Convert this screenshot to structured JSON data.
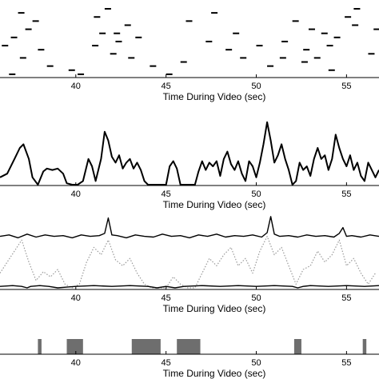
{
  "chart_data": [
    {
      "type": "raster",
      "xlabel": "Time During Video (sec)",
      "xlim": [
        35.8,
        56.8
      ],
      "xticks": [
        40,
        45,
        50,
        55
      ],
      "events": [
        {
          "t": 36.8,
          "row": 1
        },
        {
          "t": 37.6,
          "row": 3
        },
        {
          "t": 37.2,
          "row": 5
        },
        {
          "t": 36.4,
          "row": 7
        },
        {
          "t": 35.9,
          "row": 9
        },
        {
          "t": 37.9,
          "row": 10
        },
        {
          "t": 36.9,
          "row": 12
        },
        {
          "t": 38.4,
          "row": 14
        },
        {
          "t": 36.3,
          "row": 16
        },
        {
          "t": 41.6,
          "row": 0
        },
        {
          "t": 41.0,
          "row": 2
        },
        {
          "t": 42.7,
          "row": 4
        },
        {
          "t": 41.3,
          "row": 6
        },
        {
          "t": 42.1,
          "row": 6
        },
        {
          "t": 43.3,
          "row": 7
        },
        {
          "t": 42.2,
          "row": 8
        },
        {
          "t": 40.9,
          "row": 9
        },
        {
          "t": 41.9,
          "row": 11
        },
        {
          "t": 42.9,
          "row": 12
        },
        {
          "t": 44.1,
          "row": 14
        },
        {
          "t": 39.6,
          "row": 15
        },
        {
          "t": 40.1,
          "row": 16
        },
        {
          "t": 47.5,
          "row": 1
        },
        {
          "t": 48.7,
          "row": 6
        },
        {
          "t": 47.2,
          "row": 8
        },
        {
          "t": 48.3,
          "row": 10
        },
        {
          "t": 50.0,
          "row": 9
        },
        {
          "t": 49.1,
          "row": 12
        },
        {
          "t": 51.4,
          "row": 8
        },
        {
          "t": 51.3,
          "row": 12
        },
        {
          "t": 50.6,
          "row": 14
        },
        {
          "t": 52.0,
          "row": 3
        },
        {
          "t": 52.9,
          "row": 5
        },
        {
          "t": 53.6,
          "row": 6
        },
        {
          "t": 54.3,
          "row": 7
        },
        {
          "t": 53.9,
          "row": 9
        },
        {
          "t": 52.6,
          "row": 10
        },
        {
          "t": 53.2,
          "row": 12
        },
        {
          "t": 55.4,
          "row": 0
        },
        {
          "t": 54.9,
          "row": 2
        },
        {
          "t": 55.3,
          "row": 4
        },
        {
          "t": 54.0,
          "row": 15
        },
        {
          "t": 52.5,
          "row": 13
        },
        {
          "t": 45.8,
          "row": 13
        },
        {
          "t": 46.1,
          "row": 3
        },
        {
          "t": 56.2,
          "row": 11
        },
        {
          "t": 56.5,
          "row": 5
        },
        {
          "t": 45.0,
          "row": 16
        }
      ]
    },
    {
      "type": "line",
      "xlabel": "Time During Video (sec)",
      "xlim": [
        35.8,
        56.8
      ],
      "xticks": [
        40,
        45,
        50,
        55
      ],
      "ylim": [
        0,
        1
      ],
      "series": [
        {
          "style": "solid",
          "x": [
            35.8,
            36.2,
            36.6,
            36.9,
            37.1,
            37.4,
            37.6,
            37.9,
            38.2,
            38.4,
            38.7,
            39.0,
            39.3,
            39.5,
            39.8,
            40.1,
            40.4,
            40.7,
            40.9,
            41.1,
            41.4,
            41.6,
            41.8,
            42.0,
            42.2,
            42.4,
            42.6,
            42.8,
            43.0,
            43.2,
            43.4,
            43.6,
            43.8,
            44.0,
            44.5,
            45.0,
            45.2,
            45.4,
            45.6,
            45.8,
            46.0,
            46.3,
            46.6,
            46.8,
            47.0,
            47.2,
            47.4,
            47.6,
            47.8,
            48.0,
            48.2,
            48.4,
            48.6,
            48.8,
            49.0,
            49.2,
            49.4,
            49.6,
            49.8,
            50.0,
            50.2,
            50.4,
            50.6,
            50.8,
            51.0,
            51.2,
            51.4,
            51.6,
            51.8,
            52.0,
            52.2,
            52.4,
            52.6,
            52.8,
            53.0,
            53.2,
            53.4,
            53.6,
            53.8,
            54.0,
            54.2,
            54.4,
            54.6,
            54.8,
            55.0,
            55.2,
            55.4,
            55.6,
            55.8,
            56.0,
            56.2,
            56.4,
            56.6,
            56.8
          ],
          "y": [
            0.1,
            0.15,
            0.35,
            0.5,
            0.55,
            0.35,
            0.1,
            0.0,
            0.18,
            0.22,
            0.2,
            0.22,
            0.15,
            0.02,
            0.0,
            0.0,
            0.05,
            0.35,
            0.25,
            0.05,
            0.35,
            0.72,
            0.6,
            0.38,
            0.3,
            0.4,
            0.22,
            0.3,
            0.35,
            0.22,
            0.3,
            0.2,
            0.05,
            0.0,
            0.0,
            0.0,
            0.25,
            0.32,
            0.22,
            0.0,
            0.0,
            0.0,
            0.0,
            0.18,
            0.32,
            0.2,
            0.3,
            0.25,
            0.32,
            0.12,
            0.35,
            0.45,
            0.28,
            0.2,
            0.32,
            0.15,
            0.05,
            0.32,
            0.25,
            0.1,
            0.3,
            0.55,
            0.85,
            0.6,
            0.3,
            0.4,
            0.55,
            0.35,
            0.2,
            0.0,
            0.05,
            0.3,
            0.2,
            0.25,
            0.12,
            0.35,
            0.5,
            0.35,
            0.4,
            0.2,
            0.35,
            0.68,
            0.5,
            0.35,
            0.25,
            0.4,
            0.2,
            0.3,
            0.12,
            0.05,
            0.3,
            0.2,
            0.1,
            0.2
          ]
        }
      ]
    },
    {
      "type": "line",
      "xlabel": "Time During Video (sec)",
      "xlim": [
        35.8,
        56.8
      ],
      "xticks": [
        40,
        45,
        50,
        55
      ],
      "ylim": [
        0,
        1
      ],
      "series": [
        {
          "style": "solid",
          "x": [
            35.8,
            36.3,
            36.8,
            37.3,
            37.8,
            38.3,
            38.8,
            39.3,
            39.8,
            40.3,
            40.8,
            41.3,
            41.6,
            41.8,
            42.0,
            42.3,
            42.8,
            43.3,
            43.8,
            44.3,
            44.8,
            45.3,
            45.8,
            46.3,
            46.8,
            47.3,
            47.8,
            48.3,
            48.8,
            49.3,
            49.8,
            50.3,
            50.6,
            50.8,
            51.0,
            51.3,
            51.8,
            52.3,
            52.8,
            53.3,
            53.8,
            54.3,
            54.6,
            54.8,
            55.0,
            55.3,
            55.8,
            56.3,
            56.8
          ],
          "y": [
            0.7,
            0.72,
            0.68,
            0.73,
            0.69,
            0.72,
            0.7,
            0.71,
            0.68,
            0.72,
            0.7,
            0.71,
            0.74,
            0.95,
            0.72,
            0.71,
            0.68,
            0.72,
            0.7,
            0.69,
            0.73,
            0.7,
            0.71,
            0.68,
            0.72,
            0.7,
            0.73,
            0.69,
            0.71,
            0.7,
            0.72,
            0.69,
            0.75,
            0.97,
            0.73,
            0.7,
            0.71,
            0.69,
            0.72,
            0.7,
            0.71,
            0.69,
            0.74,
            0.82,
            0.7,
            0.71,
            0.69,
            0.72,
            0.7
          ]
        },
        {
          "style": "dotted",
          "x": [
            35.8,
            36.2,
            36.6,
            37.0,
            37.4,
            37.8,
            38.2,
            38.6,
            39.0,
            39.4,
            39.8,
            40.2,
            40.6,
            41.0,
            41.4,
            41.8,
            42.2,
            42.6,
            43.0,
            43.4,
            43.8,
            44.2,
            44.6,
            45.0,
            45.4,
            45.8,
            46.2,
            46.6,
            47.0,
            47.4,
            47.8,
            48.2,
            48.6,
            49.0,
            49.4,
            49.8,
            50.2,
            50.6,
            51.0,
            51.4,
            51.8,
            52.2,
            52.6,
            53.0,
            53.4,
            53.8,
            54.2,
            54.6,
            55.0,
            55.4,
            55.8,
            56.2,
            56.6
          ],
          "y": [
            0.2,
            0.35,
            0.5,
            0.65,
            0.35,
            0.1,
            0.22,
            0.15,
            0.25,
            0.05,
            0.0,
            0.05,
            0.35,
            0.55,
            0.45,
            0.65,
            0.38,
            0.3,
            0.4,
            0.2,
            0.05,
            0.0,
            0.0,
            0.0,
            0.15,
            0.05,
            0.0,
            0.0,
            0.2,
            0.4,
            0.3,
            0.45,
            0.55,
            0.3,
            0.4,
            0.2,
            0.5,
            0.7,
            0.45,
            0.55,
            0.3,
            0.05,
            0.25,
            0.3,
            0.5,
            0.35,
            0.45,
            0.65,
            0.3,
            0.4,
            0.2,
            0.05,
            0.2
          ]
        },
        {
          "style": "solid",
          "x": [
            35.8,
            36.5,
            37.0,
            37.3,
            37.5,
            38.0,
            38.5,
            39.0,
            39.5,
            40.0,
            41.0,
            42.0,
            43.0,
            44.0,
            44.5,
            45.0,
            45.5,
            46.0,
            47.0,
            48.0,
            49.0,
            50.0,
            51.0,
            52.0,
            52.3,
            52.6,
            53.0,
            54.0,
            55.0,
            56.0,
            56.8
          ],
          "y": [
            0.02,
            0.03,
            0.02,
            0.0,
            0.02,
            0.03,
            0.02,
            0.0,
            0.01,
            0.02,
            0.03,
            0.02,
            0.03,
            0.02,
            0.0,
            0.02,
            0.0,
            0.02,
            0.03,
            0.02,
            0.03,
            0.02,
            0.03,
            0.02,
            0.0,
            0.02,
            0.03,
            0.02,
            0.03,
            0.02,
            0.03
          ]
        }
      ]
    },
    {
      "type": "bar",
      "xlabel": "Time During Video (sec)",
      "xlim": [
        35.8,
        56.8
      ],
      "xticks": [
        40,
        45,
        50,
        55
      ],
      "segments": [
        {
          "start": 37.9,
          "end": 38.1
        },
        {
          "start": 39.5,
          "end": 40.4
        },
        {
          "start": 43.1,
          "end": 44.7
        },
        {
          "start": 45.6,
          "end": 46.9
        },
        {
          "start": 52.1,
          "end": 52.5
        },
        {
          "start": 55.9,
          "end": 56.1
        }
      ],
      "color": "#6e6e6e"
    }
  ]
}
